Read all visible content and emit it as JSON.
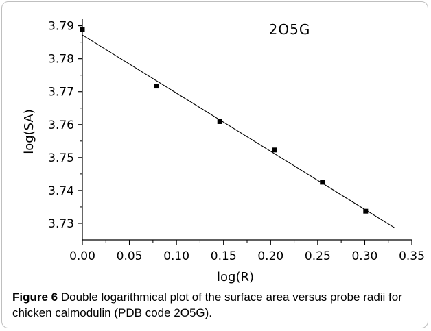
{
  "figure": {
    "label": "Figure 6",
    "caption_text": "Double logarithmical plot of the surface area versus probe radii for chicken calmodulin (PDB code 2O5G)."
  },
  "chart_data": {
    "type": "scatter",
    "title": "2O5G",
    "xlabel": "log(R)",
    "ylabel": "log(SA)",
    "xlim": [
      0.0,
      0.35
    ],
    "ylim": [
      3.725,
      3.792
    ],
    "xticks": [
      0.0,
      0.05,
      0.1,
      0.15,
      0.2,
      0.25,
      0.3,
      0.35
    ],
    "xtick_labels": [
      "0.00",
      "0.05",
      "0.10",
      "0.15",
      "0.20",
      "0.25",
      "0.30",
      "0.35"
    ],
    "yticks": [
      3.73,
      3.74,
      3.75,
      3.76,
      3.77,
      3.78,
      3.79
    ],
    "ytick_labels": [
      "3.73",
      "3.74",
      "3.75",
      "3.76",
      "3.77",
      "3.78",
      "3.79"
    ],
    "grid": false,
    "series": [
      {
        "marker": "square",
        "color": "#000000",
        "x": [
          0.0,
          0.079,
          0.146,
          0.204,
          0.255,
          0.301
        ],
        "y": [
          3.7888,
          3.7717,
          3.7609,
          3.7523,
          3.7425,
          3.7337
        ]
      }
    ],
    "fit_line": {
      "x": [
        0.0,
        0.332
      ],
      "y": [
        3.7872,
        3.7286
      ],
      "color": "#000000"
    }
  }
}
